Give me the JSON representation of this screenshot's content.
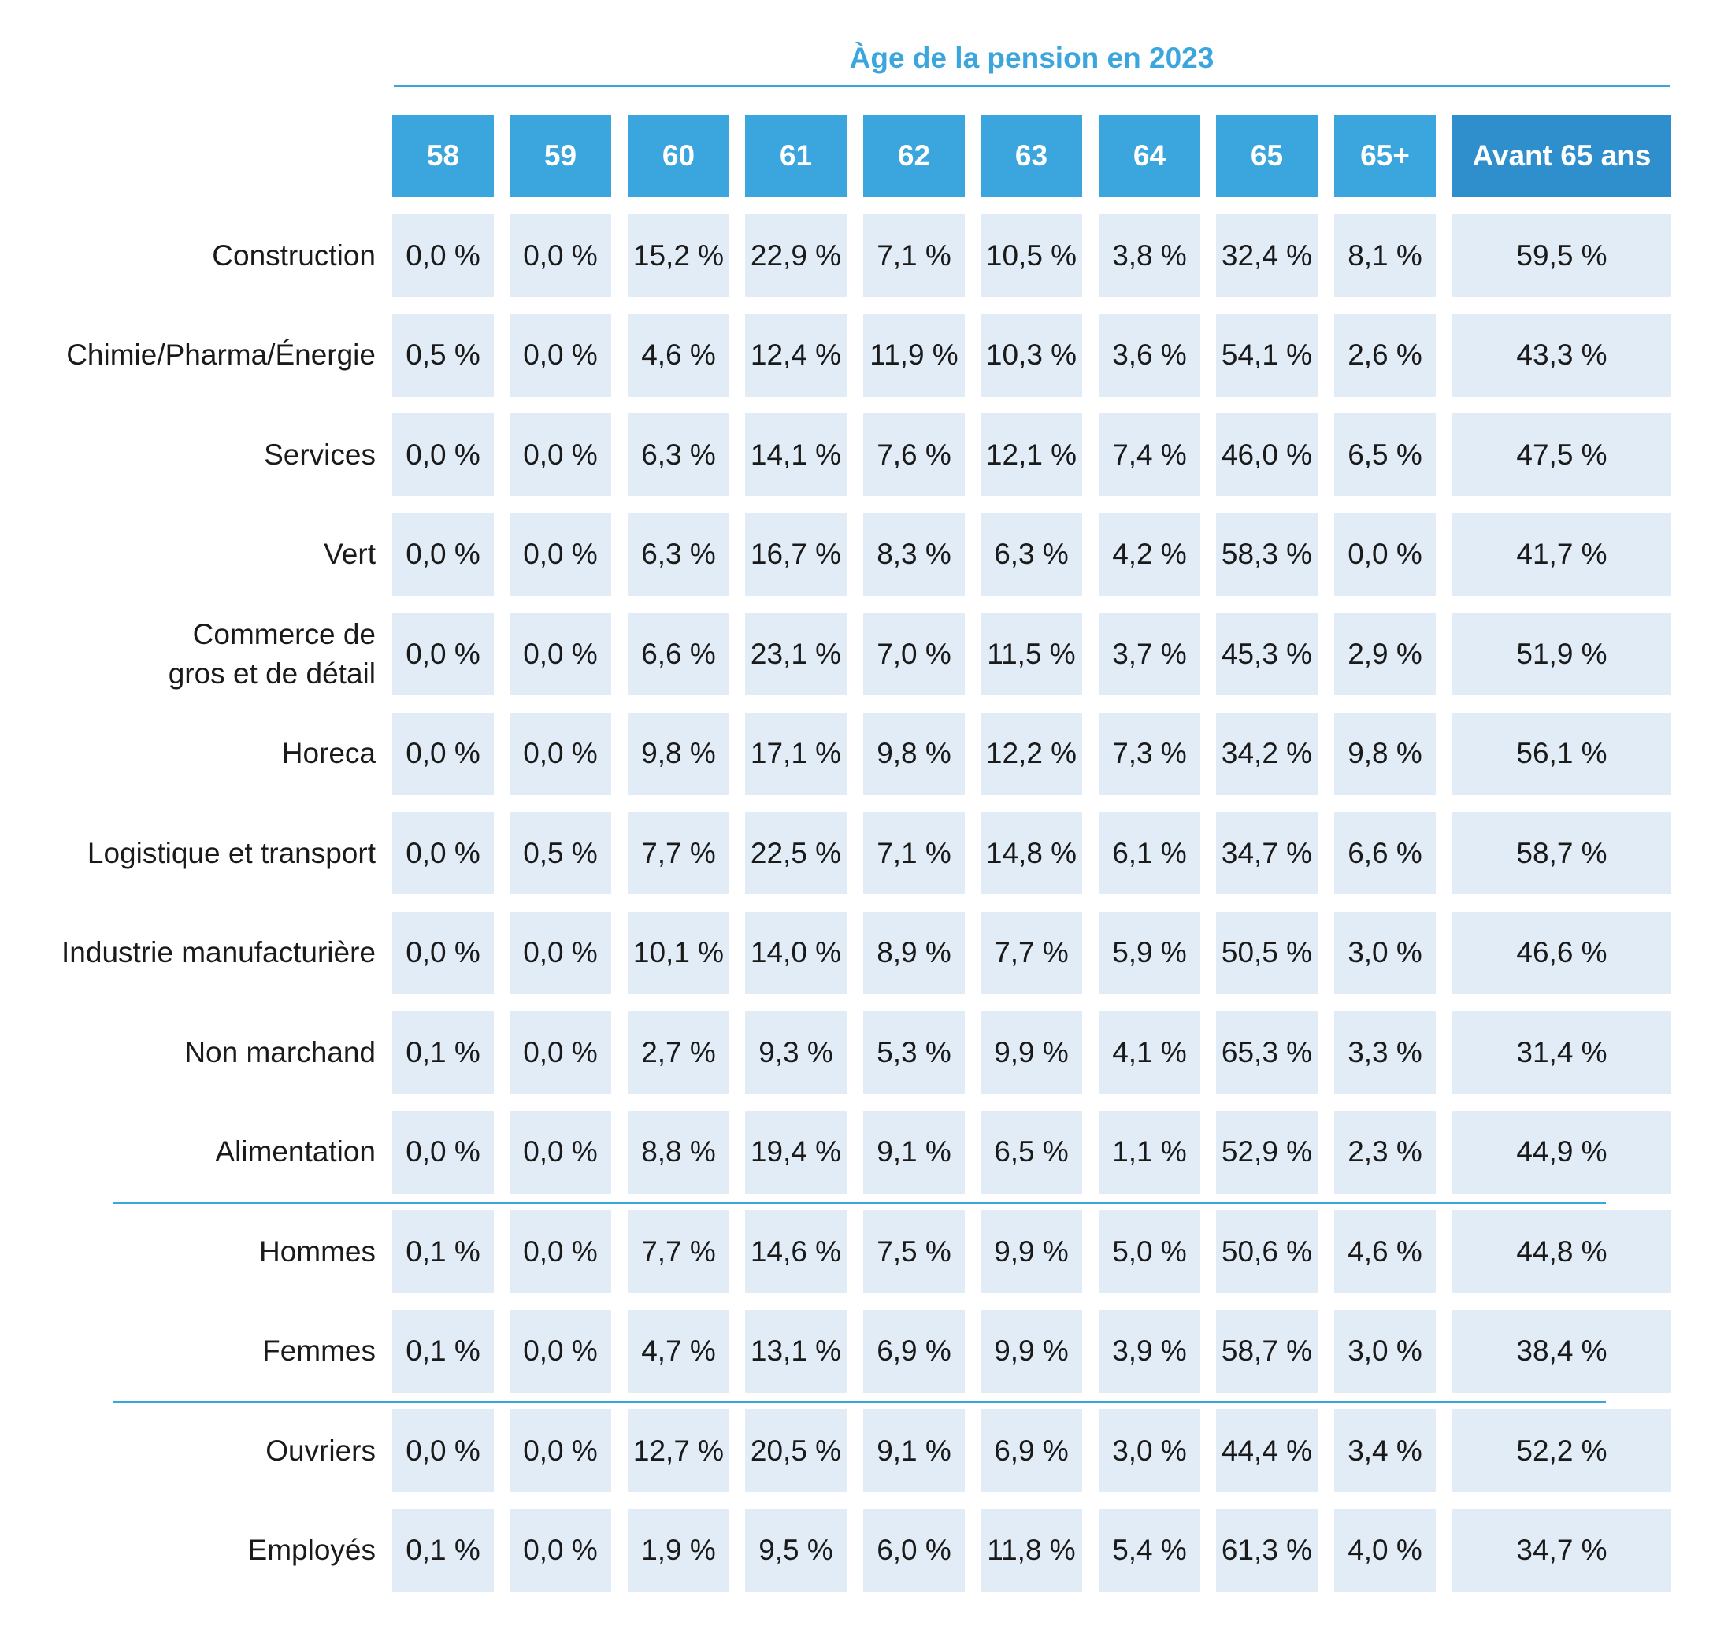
{
  "chart_data": {
    "type": "table",
    "title": "Àge de la pension en 2023",
    "columns": [
      "58",
      "59",
      "60",
      "61",
      "62",
      "63",
      "64",
      "65",
      "65+",
      "Avant 65 ans"
    ],
    "groups": [
      {
        "rows": [
          {
            "label": "Construction",
            "values": [
              "0,0 %",
              "0,0 %",
              "15,2 %",
              "22,9 %",
              "7,1 %",
              "10,5 %",
              "3,8 %",
              "32,4 %",
              "8,1 %",
              "59,5 %"
            ]
          },
          {
            "label": "Chimie/Pharma/Énergie",
            "values": [
              "0,5 %",
              "0,0 %",
              "4,6 %",
              "12,4 %",
              "11,9 %",
              "10,3 %",
              "3,6 %",
              "54,1 %",
              "2,6 %",
              "43,3 %"
            ]
          },
          {
            "label": "Services",
            "values": [
              "0,0 %",
              "0,0 %",
              "6,3 %",
              "14,1 %",
              "7,6 %",
              "12,1 %",
              "7,4 %",
              "46,0 %",
              "6,5 %",
              "47,5 %"
            ]
          },
          {
            "label": "Vert",
            "values": [
              "0,0 %",
              "0,0 %",
              "6,3 %",
              "16,7 %",
              "8,3 %",
              "6,3 %",
              "4,2 %",
              "58,3 %",
              "0,0 %",
              "41,7 %"
            ]
          },
          {
            "label": "Commerce de\ngros et de détail",
            "values": [
              "0,0 %",
              "0,0 %",
              "6,6 %",
              "23,1 %",
              "7,0 %",
              "11,5 %",
              "3,7 %",
              "45,3 %",
              "2,9 %",
              "51,9 %"
            ]
          },
          {
            "label": "Horeca",
            "values": [
              "0,0 %",
              "0,0 %",
              "9,8 %",
              "17,1 %",
              "9,8 %",
              "12,2 %",
              "7,3 %",
              "34,2 %",
              "9,8 %",
              "56,1 %"
            ]
          },
          {
            "label": "Logistique et transport",
            "values": [
              "0,0 %",
              "0,5 %",
              "7,7 %",
              "22,5 %",
              "7,1 %",
              "14,8 %",
              "6,1 %",
              "34,7 %",
              "6,6 %",
              "58,7 %"
            ]
          },
          {
            "label": "Industrie manufacturière",
            "values": [
              "0,0 %",
              "0,0 %",
              "10,1 %",
              "14,0 %",
              "8,9 %",
              "7,7 %",
              "5,9 %",
              "50,5 %",
              "3,0 %",
              "46,6 %"
            ]
          },
          {
            "label": "Non marchand",
            "values": [
              "0,1 %",
              "0,0 %",
              "2,7 %",
              "9,3 %",
              "5,3 %",
              "9,9 %",
              "4,1 %",
              "65,3 %",
              "3,3 %",
              "31,4 %"
            ]
          },
          {
            "label": "Alimentation",
            "values": [
              "0,0 %",
              "0,0 %",
              "8,8 %",
              "19,4 %",
              "9,1 %",
              "6,5 %",
              "1,1 %",
              "52,9 %",
              "2,3 %",
              "44,9 %"
            ]
          }
        ]
      },
      {
        "rows": [
          {
            "label": "Hommes",
            "values": [
              "0,1 %",
              "0,0 %",
              "7,7 %",
              "14,6 %",
              "7,5 %",
              "9,9 %",
              "5,0 %",
              "50,6 %",
              "4,6 %",
              "44,8 %"
            ]
          },
          {
            "label": "Femmes",
            "values": [
              "0,1 %",
              "0,0 %",
              "4,7 %",
              "13,1 %",
              "6,9 %",
              "9,9 %",
              "3,9 %",
              "58,7 %",
              "3,0 %",
              "38,4 %"
            ]
          }
        ]
      },
      {
        "rows": [
          {
            "label": "Ouvriers",
            "values": [
              "0,0 %",
              "0,0 %",
              "12,7 %",
              "20,5 %",
              "9,1 %",
              "6,9 %",
              "3,0 %",
              "44,4 %",
              "3,4 %",
              "52,2 %"
            ]
          },
          {
            "label": "Employés",
            "values": [
              "0,1 %",
              "0,0 %",
              "1,9 %",
              "9,5 %",
              "6,0 %",
              "11,8 %",
              "5,4 %",
              "61,3 %",
              "4,0 %",
              "34,7 %"
            ]
          }
        ]
      }
    ]
  },
  "colors": {
    "accent": "#3ba6de",
    "header_dark": "#2f8fcd",
    "cell_background": "#e1ecf7",
    "text": "#1a1a1a"
  }
}
